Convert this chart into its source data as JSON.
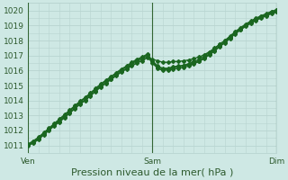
{
  "title": "",
  "xlabel": "Pression niveau de la mer( hPa )",
  "ylabel": "",
  "ylim": [
    1010.5,
    1020.5
  ],
  "xlim": [
    0,
    48
  ],
  "xtick_positions": [
    0,
    24,
    48
  ],
  "xtick_labels": [
    "Ven",
    "Sam",
    "Dim"
  ],
  "ytick_positions": [
    1011,
    1012,
    1013,
    1014,
    1015,
    1016,
    1017,
    1018,
    1019,
    1020
  ],
  "bg_color": "#cee8e4",
  "grid_color": "#b8d4d0",
  "line_color": "#1a6620",
  "vline_color": "#336633",
  "vline_positions": [
    0,
    24,
    48
  ],
  "series": [
    [
      1011.0,
      1011.15,
      1011.4,
      1011.7,
      1012.0,
      1012.3,
      1012.55,
      1012.85,
      1013.15,
      1013.45,
      1013.75,
      1014.0,
      1014.3,
      1014.6,
      1014.9,
      1015.15,
      1015.4,
      1015.65,
      1015.9,
      1016.1,
      1016.3,
      1016.5,
      1016.65,
      1016.85,
      1016.75,
      1016.65,
      1016.55,
      1016.55,
      1016.6,
      1016.6,
      1016.65,
      1016.7,
      1016.8,
      1016.9,
      1017.05,
      1017.25,
      1017.5,
      1017.75,
      1018.0,
      1018.25,
      1018.55,
      1018.8,
      1019.05,
      1019.25,
      1019.45,
      1019.6,
      1019.75,
      1019.9,
      1020.0
    ],
    [
      1011.05,
      1011.25,
      1011.5,
      1011.8,
      1012.1,
      1012.4,
      1012.7,
      1013.0,
      1013.3,
      1013.6,
      1013.9,
      1014.15,
      1014.45,
      1014.75,
      1015.05,
      1015.3,
      1015.55,
      1015.8,
      1016.05,
      1016.25,
      1016.5,
      1016.7,
      1016.85,
      1017.05,
      1016.6,
      1016.2,
      1016.1,
      1016.1,
      1016.2,
      1016.25,
      1016.3,
      1016.4,
      1016.5,
      1016.65,
      1016.85,
      1017.1,
      1017.35,
      1017.65,
      1017.9,
      1018.2,
      1018.5,
      1018.75,
      1019.0,
      1019.2,
      1019.4,
      1019.55,
      1019.7,
      1019.85,
      1020.0
    ],
    [
      1011.1,
      1011.3,
      1011.55,
      1011.85,
      1012.15,
      1012.45,
      1012.75,
      1013.05,
      1013.35,
      1013.65,
      1013.95,
      1014.2,
      1014.5,
      1014.8,
      1015.1,
      1015.35,
      1015.6,
      1015.85,
      1016.1,
      1016.3,
      1016.55,
      1016.75,
      1016.9,
      1017.1,
      1016.65,
      1016.3,
      1016.15,
      1016.15,
      1016.25,
      1016.3,
      1016.35,
      1016.45,
      1016.6,
      1016.75,
      1016.95,
      1017.2,
      1017.45,
      1017.75,
      1018.0,
      1018.3,
      1018.6,
      1018.85,
      1019.1,
      1019.3,
      1019.5,
      1019.65,
      1019.8,
      1019.95,
      1020.05
    ],
    [
      1011.05,
      1011.2,
      1011.45,
      1011.75,
      1012.05,
      1012.35,
      1012.6,
      1012.9,
      1013.2,
      1013.5,
      1013.8,
      1014.05,
      1014.35,
      1014.65,
      1014.95,
      1015.2,
      1015.45,
      1015.7,
      1015.95,
      1016.15,
      1016.4,
      1016.6,
      1016.75,
      1016.95,
      1016.5,
      1016.15,
      1016.0,
      1016.05,
      1016.1,
      1016.15,
      1016.2,
      1016.3,
      1016.45,
      1016.6,
      1016.8,
      1017.05,
      1017.3,
      1017.6,
      1017.85,
      1018.15,
      1018.45,
      1018.7,
      1018.95,
      1019.15,
      1019.35,
      1019.5,
      1019.65,
      1019.8,
      1019.9
    ]
  ],
  "marker": "D",
  "markersize": 2.0,
  "linewidth": 1.0,
  "xlabel_fontsize": 8,
  "tick_fontsize": 6.5
}
